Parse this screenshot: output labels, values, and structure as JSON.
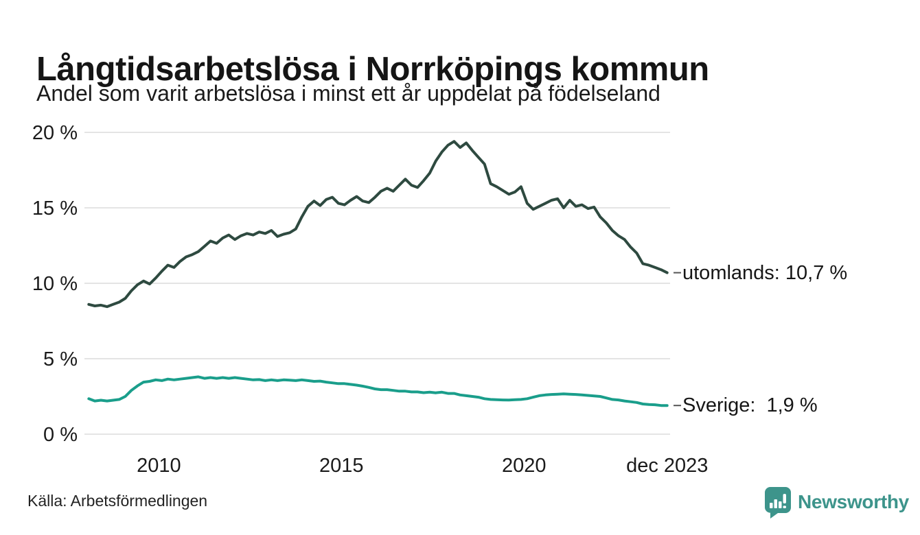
{
  "header": {
    "title": "Långtidsarbetslösa i Norrköpings kommun",
    "subtitle": "Andel som varit arbetslösa i minst ett år uppdelat på födelseland"
  },
  "footer": {
    "source": "Källa: Arbetsförmedlingen",
    "brand": "Newsworthy"
  },
  "colors": {
    "utomlands_line": "#2e4a40",
    "sverige_line": "#1a9e8b",
    "gridline": "#e4e4e4",
    "end_tick": "#555555",
    "brand_teal": "#3d948b",
    "text": "#1a1a1a"
  },
  "chart_data": {
    "type": "line",
    "title": "Långtidsarbetslösa i Norrköpings kommun",
    "subtitle": "Andel som varit arbetslösa i minst ett år uppdelat på födelseland",
    "xlabel": "",
    "ylabel": "",
    "unit": "%",
    "grid": true,
    "legend_position": "right-end-labels",
    "x_range": [
      2008,
      2024
    ],
    "ylim": [
      0,
      20
    ],
    "x_start": 2008.08,
    "x_end": 2023.92,
    "y_ticks": [
      {
        "label": "20 %",
        "value": 20
      },
      {
        "label": "15 %",
        "value": 15
      },
      {
        "label": "10 %",
        "value": 10
      },
      {
        "label": "5 %",
        "value": 5
      },
      {
        "label": "0 %",
        "value": 0
      }
    ],
    "x_ticks": [
      {
        "label": "2010",
        "year": 2010
      },
      {
        "label": "2015",
        "year": 2015
      },
      {
        "label": "2020",
        "year": 2020
      },
      {
        "label": "dec 2023",
        "year": 2023.92
      }
    ],
    "series": [
      {
        "name": "utomlands",
        "end_label": "utomlands: 10,7 %",
        "end_value": "10,7 %",
        "color": "#2e4a40",
        "values": [
          8.6,
          8.5,
          8.55,
          8.45,
          8.6,
          8.75,
          9.0,
          9.5,
          9.9,
          10.15,
          9.95,
          10.35,
          10.8,
          11.2,
          11.05,
          11.45,
          11.75,
          11.9,
          12.1,
          12.45,
          12.8,
          12.65,
          13.0,
          13.2,
          12.9,
          13.15,
          13.3,
          13.2,
          13.4,
          13.3,
          13.5,
          13.1,
          13.25,
          13.35,
          13.6,
          14.4,
          15.1,
          15.45,
          15.15,
          15.55,
          15.7,
          15.3,
          15.2,
          15.5,
          15.75,
          15.45,
          15.35,
          15.7,
          16.1,
          16.3,
          16.1,
          16.5,
          16.9,
          16.5,
          16.35,
          16.8,
          17.3,
          18.1,
          18.7,
          19.15,
          19.4,
          19.0,
          19.3,
          18.8,
          18.35,
          17.9,
          16.6,
          16.4,
          16.15,
          15.9,
          16.05,
          16.4,
          15.3,
          14.9,
          15.1,
          15.3,
          15.5,
          15.6,
          15.0,
          15.5,
          15.1,
          15.2,
          14.95,
          15.05,
          14.4,
          14.0,
          13.5,
          13.15,
          12.9,
          12.4,
          12.0,
          11.3,
          11.2,
          11.05,
          10.9,
          10.7
        ]
      },
      {
        "name": "Sverige",
        "end_label": "Sverige:  1,9 %",
        "end_value": "1,9 %",
        "color": "#1a9e8b",
        "values": [
          2.35,
          2.2,
          2.25,
          2.2,
          2.25,
          2.3,
          2.5,
          2.9,
          3.2,
          3.45,
          3.5,
          3.6,
          3.55,
          3.65,
          3.6,
          3.65,
          3.7,
          3.75,
          3.8,
          3.7,
          3.75,
          3.7,
          3.75,
          3.7,
          3.75,
          3.7,
          3.65,
          3.6,
          3.62,
          3.55,
          3.6,
          3.55,
          3.6,
          3.58,
          3.55,
          3.6,
          3.55,
          3.5,
          3.52,
          3.45,
          3.4,
          3.35,
          3.35,
          3.3,
          3.25,
          3.18,
          3.1,
          3.0,
          2.95,
          2.95,
          2.9,
          2.85,
          2.85,
          2.8,
          2.8,
          2.75,
          2.78,
          2.74,
          2.78,
          2.7,
          2.7,
          2.6,
          2.55,
          2.5,
          2.45,
          2.35,
          2.3,
          2.28,
          2.27,
          2.26,
          2.28,
          2.3,
          2.35,
          2.45,
          2.55,
          2.6,
          2.63,
          2.65,
          2.67,
          2.65,
          2.63,
          2.6,
          2.57,
          2.53,
          2.5,
          2.4,
          2.3,
          2.27,
          2.2,
          2.15,
          2.1,
          2.0,
          1.97,
          1.95,
          1.9,
          1.9
        ]
      }
    ]
  }
}
